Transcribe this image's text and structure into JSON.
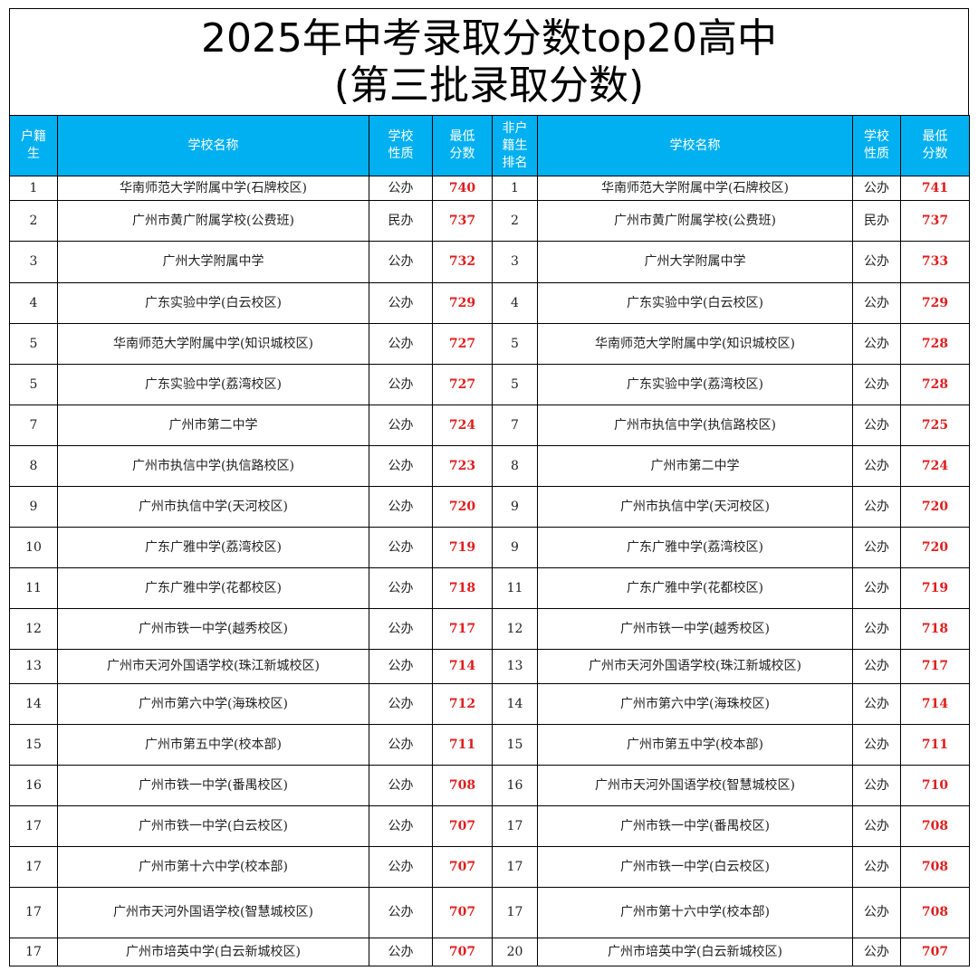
{
  "title": {
    "line1": "2025年中考录取分数top20高中",
    "line2": "(第三批录取分数)"
  },
  "headers": {
    "rank_local": "户籍生",
    "school_name": "学校名称",
    "school_type": "学校性质",
    "min_score": "最低分数",
    "rank_nonlocal": "非户籍生排名"
  },
  "colors": {
    "header_bg": "#00b0f0",
    "header_text": "#ffffff",
    "score_text": "#e01e1e"
  },
  "rows": [
    {
      "lr": "1",
      "ln": "华南师范大学附属中学(石牌校区)",
      "lt": "公办",
      "ls": "740",
      "rr": "1",
      "rn": "华南师范大学附属中学(石牌校区)",
      "rt": "公办",
      "rs": "741"
    },
    {
      "lr": "2",
      "ln": "广州市黄广附属学校(公费班)",
      "lt": "民办",
      "ls": "737",
      "rr": "2",
      "rn": "广州市黄广附属学校(公费班)",
      "rt": "民办",
      "rs": "737"
    },
    {
      "lr": "3",
      "ln": "广州大学附属中学",
      "lt": "公办",
      "ls": "732",
      "rr": "3",
      "rn": "广州大学附属中学",
      "rt": "公办",
      "rs": "733"
    },
    {
      "lr": "4",
      "ln": "广东实验中学(白云校区)",
      "lt": "公办",
      "ls": "729",
      "rr": "4",
      "rn": "广东实验中学(白云校区)",
      "rt": "公办",
      "rs": "729"
    },
    {
      "lr": "5",
      "ln": "华南师范大学附属中学(知识城校区)",
      "lt": "公办",
      "ls": "727",
      "rr": "5",
      "rn": "华南师范大学附属中学(知识城校区)",
      "rt": "公办",
      "rs": "728"
    },
    {
      "lr": "5",
      "ln": "广东实验中学(荔湾校区)",
      "lt": "公办",
      "ls": "727",
      "rr": "5",
      "rn": "广东实验中学(荔湾校区)",
      "rt": "公办",
      "rs": "728"
    },
    {
      "lr": "7",
      "ln": "广州市第二中学",
      "lt": "公办",
      "ls": "724",
      "rr": "7",
      "rn": "广州市执信中学(执信路校区)",
      "rt": "公办",
      "rs": "725"
    },
    {
      "lr": "8",
      "ln": "广州市执信中学(执信路校区)",
      "lt": "公办",
      "ls": "723",
      "rr": "8",
      "rn": "广州市第二中学",
      "rt": "公办",
      "rs": "724"
    },
    {
      "lr": "9",
      "ln": "广州市执信中学(天河校区)",
      "lt": "公办",
      "ls": "720",
      "rr": "9",
      "rn": "广州市执信中学(天河校区)",
      "rt": "公办",
      "rs": "720"
    },
    {
      "lr": "10",
      "ln": "广东广雅中学(荔湾校区)",
      "lt": "公办",
      "ls": "719",
      "rr": "9",
      "rn": "广东广雅中学(荔湾校区)",
      "rt": "公办",
      "rs": "720"
    },
    {
      "lr": "11",
      "ln": "广东广雅中学(花都校区)",
      "lt": "公办",
      "ls": "718",
      "rr": "11",
      "rn": "广东广雅中学(花都校区)",
      "rt": "公办",
      "rs": "719"
    },
    {
      "lr": "12",
      "ln": "广州市铁一中学(越秀校区)",
      "lt": "公办",
      "ls": "717",
      "rr": "12",
      "rn": "广州市铁一中学(越秀校区)",
      "rt": "公办",
      "rs": "718"
    },
    {
      "lr": "13",
      "ln": "广州市天河外国语学校(珠江新城校区)",
      "lt": "公办",
      "ls": "714",
      "rr": "13",
      "rn": "广州市天河外国语学校(珠江新城校区)",
      "rt": "公办",
      "rs": "717"
    },
    {
      "lr": "14",
      "ln": "广州市第六中学(海珠校区)",
      "lt": "公办",
      "ls": "712",
      "rr": "14",
      "rn": "广州市第六中学(海珠校区)",
      "rt": "公办",
      "rs": "714"
    },
    {
      "lr": "15",
      "ln": "广州市第五中学(校本部)",
      "lt": "公办",
      "ls": "711",
      "rr": "15",
      "rn": "广州市第五中学(校本部)",
      "rt": "公办",
      "rs": "711"
    },
    {
      "lr": "16",
      "ln": "广州市铁一中学(番禺校区)",
      "lt": "公办",
      "ls": "708",
      "rr": "16",
      "rn": "广州市天河外国语学校(智慧城校区)",
      "rt": "公办",
      "rs": "710"
    },
    {
      "lr": "17",
      "ln": "广州市铁一中学(白云校区)",
      "lt": "公办",
      "ls": "707",
      "rr": "17",
      "rn": "广州市铁一中学(番禺校区)",
      "rt": "公办",
      "rs": "708"
    },
    {
      "lr": "17",
      "ln": "广州市第十六中学(校本部)",
      "lt": "公办",
      "ls": "707",
      "rr": "17",
      "rn": "广州市铁一中学(白云校区)",
      "rt": "公办",
      "rs": "708"
    },
    {
      "lr": "17",
      "ln": "广州市天河外国语学校(智慧城校区)",
      "lt": "公办",
      "ls": "707",
      "rr": "17",
      "rn": "广州市第十六中学(校本部)",
      "rt": "公办",
      "rs": "708"
    },
    {
      "lr": "17",
      "ln": "广州市培英中学(白云新城校区)",
      "lt": "公办",
      "ls": "707",
      "rr": "20",
      "rn": "广州市培英中学(白云新城校区)",
      "rt": "公办",
      "rs": "707"
    }
  ]
}
